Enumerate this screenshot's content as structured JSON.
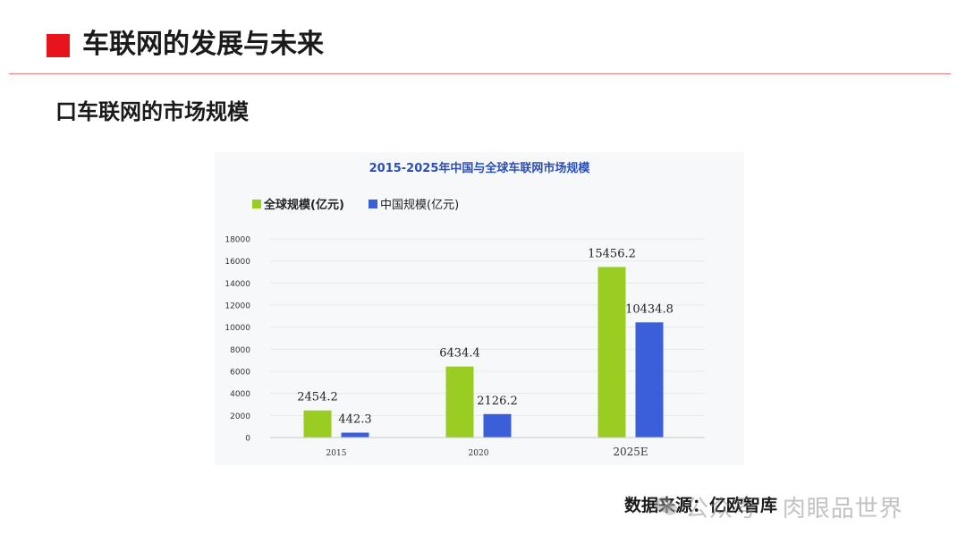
{
  "header": {
    "title": "车联网的发展与未来",
    "accent_color": "#e8141c"
  },
  "section": {
    "title": "口车联网的市场规模"
  },
  "chart_data": {
    "type": "bar",
    "title": "2015-2025年中国与全球车联网市场规模",
    "categories": [
      "2015",
      "2020",
      "2025E"
    ],
    "series": [
      {
        "name": "全球规模(亿元)",
        "values": [
          2454.2,
          6434.4,
          15456.2
        ],
        "color": "#9acd22"
      },
      {
        "name": "中国规模(亿元)",
        "values": [
          442.3,
          2126.2,
          10434.8
        ],
        "color": "#3a5fd9"
      }
    ],
    "data_labels": [
      [
        "2454.2",
        "6434.4",
        "15456.2"
      ],
      [
        "442.3",
        "2126.2",
        "10434.8"
      ]
    ],
    "y_ticks": [
      "0",
      "2000",
      "4000",
      "6000",
      "8000",
      "10000",
      "12000",
      "14000",
      "16000",
      "18000"
    ],
    "ylim": [
      0,
      18000
    ],
    "xlabel": "",
    "ylabel": "",
    "legend_position": "top-left",
    "grid": true
  },
  "source": {
    "text": "数据来源：亿欧智库"
  },
  "watermark": {
    "text": "公众号 · 肉眼品世界",
    "icon": "wechat-icon"
  }
}
